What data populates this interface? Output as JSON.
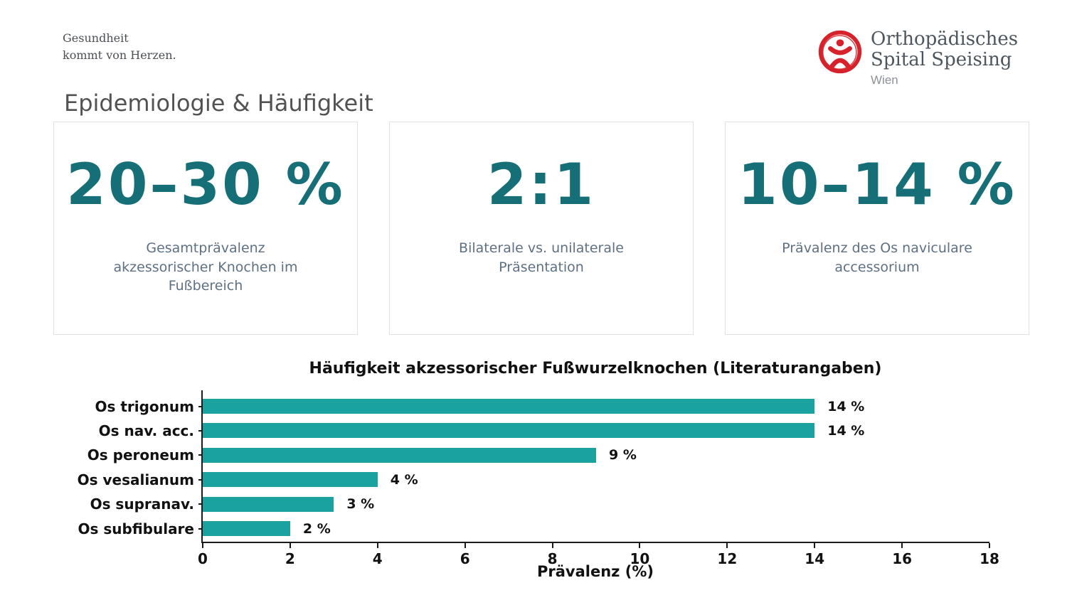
{
  "tagline": {
    "line1": "Gesundheit",
    "line2": "kommt von Herzen."
  },
  "logo": {
    "icon": "speising-jumping-figure-icon",
    "name_line1": "Orthopädisches",
    "name_line2": "Spital Speising",
    "city": "Wien",
    "brand_color": "#d6232b"
  },
  "header": {
    "title": "Epidemiologie & Häufigkeit"
  },
  "stat_cards": [
    {
      "value": "20–30 %",
      "label": "Gesamtprävalenz akzessorischer Knochen im Fußbereich"
    },
    {
      "value": "2:1",
      "label": "Bilaterale vs. unilaterale Präsentation"
    },
    {
      "value": "10–14 %",
      "label": "Prävalenz des Os naviculare accessorium"
    }
  ],
  "colors": {
    "stat_value_teal": "#166f76",
    "bar_teal": "#1aa2a0",
    "muted_label_gray": "#5e7182",
    "title_gray": "#525252",
    "axis_black": "#1a1a1a"
  },
  "chart_data": {
    "type": "bar",
    "orientation": "horizontal",
    "title": "Häufigkeit akzessorischer Fußwurzelknochen (Literaturangaben)",
    "categories": [
      "Os trigonum",
      "Os nav. acc.",
      "Os peroneum",
      "Os vesalianum",
      "Os supranav.",
      "Os subfibulare"
    ],
    "values": [
      14,
      14,
      9,
      4,
      3,
      2
    ],
    "value_labels": [
      "14 %",
      "14 %",
      "9 %",
      "4 %",
      "3 %",
      "2 %"
    ],
    "xlabel": "Prävalenz (%)",
    "xlim": [
      0,
      18
    ],
    "xticks": [
      0,
      2,
      4,
      6,
      8,
      10,
      12,
      14,
      16,
      18
    ],
    "grid": false,
    "legend": "none",
    "bar_color": "#1aa2a0"
  }
}
